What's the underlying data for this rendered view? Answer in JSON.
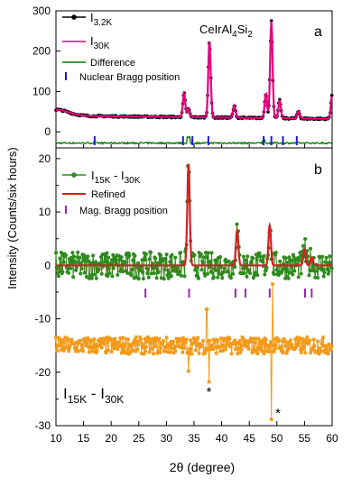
{
  "chart_data": [
    {
      "panel": "a",
      "type": "line",
      "title": "CeIrAl4Si2",
      "ylabel": "Intensity (Counts/six hours)",
      "xlim": [
        10,
        60
      ],
      "ylim": [
        -40,
        300
      ],
      "yticks": [
        0,
        100,
        200,
        300
      ],
      "background_level": 40,
      "series": [
        {
          "name": "I3.2K",
          "color": "#000000",
          "marker": "circle"
        },
        {
          "name": "I30K",
          "color": "#e6007e"
        },
        {
          "name": "Difference",
          "color": "#007a00",
          "offset": -28
        }
      ],
      "peaks": [
        {
          "x": 33.2,
          "y": 100
        },
        {
          "x": 34.0,
          "y": 60
        },
        {
          "x": 37.8,
          "y": 230
        },
        {
          "x": 42.3,
          "y": 70
        },
        {
          "x": 48.0,
          "y": 100
        },
        {
          "x": 49.0,
          "y": 280
        },
        {
          "x": 50.5,
          "y": 85
        },
        {
          "x": 53.9,
          "y": 58
        },
        {
          "x": 60.0,
          "y": 100
        }
      ],
      "bragg_marks": {
        "label": "Nuclear Bragg position",
        "color": "#1a1adb",
        "x": [
          17.0,
          33.0,
          34.7,
          37.6,
          47.6,
          49.0,
          51.1,
          53.6
        ]
      },
      "legend_entries": [
        {
          "label": "I",
          "sub": "3.2K"
        },
        {
          "label": "I",
          "sub": "30K"
        },
        {
          "label": "Difference",
          "sub": ""
        },
        {
          "label": "Nuclear Bragg position",
          "sub": ""
        }
      ],
      "formula": [
        {
          "t": "CeIrAl"
        },
        {
          "t": "4",
          "sub": true
        },
        {
          "t": "Si"
        },
        {
          "t": "2",
          "sub": true
        }
      ]
    },
    {
      "panel": "b",
      "type": "scatter",
      "xlabel": "2θ (degree)",
      "ylabel": "Intensity (Counts/six hours)",
      "xlim": [
        10,
        60
      ],
      "ylim": [
        -30,
        22
      ],
      "xticks": [
        10,
        15,
        20,
        25,
        30,
        35,
        40,
        45,
        50,
        55,
        60
      ],
      "yticks": [
        -30,
        -20,
        -10,
        0,
        10,
        20
      ],
      "series": [
        {
          "name": "I15K - I30K",
          "color": "#2f8a1e",
          "marker": "circle",
          "baseline": 0,
          "noise": 2.5
        },
        {
          "name": "Refined",
          "color": "#d42020"
        },
        {
          "name": "I15K - I30K",
          "color": "#f39a1a",
          "marker": "square",
          "baseline": -15,
          "noise": 1.6
        }
      ],
      "refined_peaks": [
        {
          "x": 34.0,
          "y": 19
        },
        {
          "x": 42.8,
          "y": 6.5
        },
        {
          "x": 48.7,
          "y": 7.5
        },
        {
          "x": 55.0,
          "y": 3
        },
        {
          "x": 56.3,
          "y": 1.5
        }
      ],
      "bragg_marks": {
        "label": "Mag. Bragg position",
        "color": "#9c27b0",
        "x": [
          26.2,
          34.1,
          42.5,
          44.3,
          48.7,
          55.1,
          56.3
        ]
      },
      "legend_entries": [
        {
          "label": "I",
          "sub1": "15K",
          "mid": " - I",
          "sub2": "30K"
        },
        {
          "label": "Refined"
        },
        {
          "label": "Mag. Bragg position"
        }
      ],
      "annotations": [
        {
          "text": "*",
          "x": 37.7,
          "y": -21.8
        },
        {
          "text": "*",
          "x": 50.2,
          "y": -25.8
        }
      ],
      "inset_label": {
        "label": "I",
        "sub1": "15K",
        "mid": " - I",
        "sub2": "30K"
      }
    }
  ],
  "panel_letters": [
    "a",
    "b"
  ]
}
